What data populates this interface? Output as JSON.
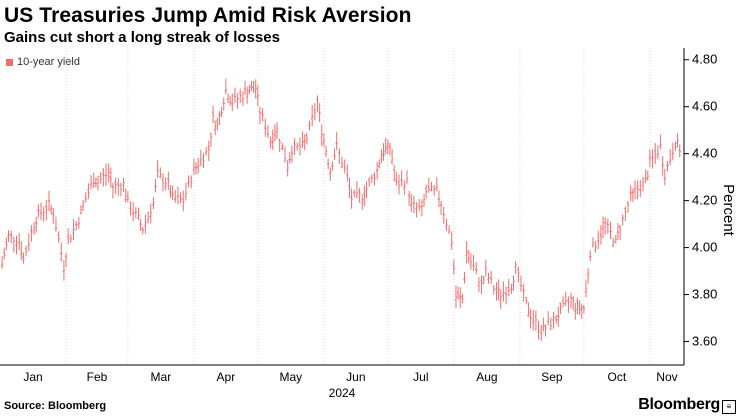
{
  "header": {
    "title": "US Treasuries Jump Amid Risk Aversion",
    "subtitle": "Gains cut short a long streak of losses"
  },
  "footer": {
    "source": "Source: Bloomberg",
    "brand": "Bloomberg"
  },
  "colors": {
    "series": "#f26d6d",
    "grid": "#d9d9d9",
    "axis": "#000000"
  },
  "chart_data": {
    "type": "line",
    "title": "US Treasuries Jump Amid Risk Aversion",
    "subtitle": "Gains cut short a long streak of losses",
    "ylabel": "Percent",
    "ylim": [
      3.5,
      4.85
    ],
    "yticks": [
      3.6,
      3.8,
      4.0,
      4.2,
      4.4,
      4.6,
      4.8
    ],
    "ytick_labels": [
      "3.60",
      "3.80",
      "4.00",
      "4.20",
      "4.40",
      "4.60",
      "4.80"
    ],
    "xticks": [
      "Jan",
      "Feb",
      "Mar",
      "Apr",
      "May",
      "Jun",
      "Jul",
      "Aug",
      "Sep",
      "Oct",
      "Nov"
    ],
    "xaxis_year": "2024",
    "grid": "vertical",
    "legend_position": "top-left",
    "series": [
      {
        "name": "10-year yield",
        "style": "ohlc-bars",
        "x": [
          "2024-01-02",
          "2024-01-05",
          "2024-01-10",
          "2024-01-12",
          "2024-01-17",
          "2024-01-19",
          "2024-01-24",
          "2024-01-26",
          "2024-01-31",
          "2024-02-02",
          "2024-02-07",
          "2024-02-09",
          "2024-02-14",
          "2024-02-16",
          "2024-02-21",
          "2024-02-23",
          "2024-02-28",
          "2024-03-01",
          "2024-03-06",
          "2024-03-08",
          "2024-03-13",
          "2024-03-15",
          "2024-03-20",
          "2024-03-22",
          "2024-03-27",
          "2024-04-01",
          "2024-04-03",
          "2024-04-08",
          "2024-04-10",
          "2024-04-12",
          "2024-04-16",
          "2024-04-19",
          "2024-04-24",
          "2024-04-26",
          "2024-04-30",
          "2024-05-02",
          "2024-05-07",
          "2024-05-10",
          "2024-05-15",
          "2024-05-17",
          "2024-05-22",
          "2024-05-24",
          "2024-05-29",
          "2024-05-31",
          "2024-06-04",
          "2024-06-07",
          "2024-06-12",
          "2024-06-14",
          "2024-06-19",
          "2024-06-21",
          "2024-06-26",
          "2024-06-28",
          "2024-07-02",
          "2024-07-05",
          "2024-07-10",
          "2024-07-12",
          "2024-07-17",
          "2024-07-19",
          "2024-07-24",
          "2024-07-26",
          "2024-07-31",
          "2024-08-02",
          "2024-08-05",
          "2024-08-07",
          "2024-08-09",
          "2024-08-14",
          "2024-08-16",
          "2024-08-21",
          "2024-08-23",
          "2024-08-28",
          "2024-08-30",
          "2024-09-04",
          "2024-09-06",
          "2024-09-11",
          "2024-09-13",
          "2024-09-18",
          "2024-09-20",
          "2024-09-25",
          "2024-09-27",
          "2024-10-01",
          "2024-10-04",
          "2024-10-09",
          "2024-10-11",
          "2024-10-16",
          "2024-10-18",
          "2024-10-23",
          "2024-10-25",
          "2024-10-30",
          "2024-11-01",
          "2024-11-06",
          "2024-11-08",
          "2024-11-13",
          "2024-11-15"
        ],
        "values": [
          3.93,
          4.05,
          4.03,
          3.95,
          4.1,
          4.14,
          4.18,
          4.15,
          3.92,
          4.03,
          4.12,
          4.18,
          4.29,
          4.28,
          4.32,
          4.26,
          4.27,
          4.19,
          4.12,
          4.08,
          4.19,
          4.31,
          4.27,
          4.21,
          4.2,
          4.33,
          4.36,
          4.42,
          4.55,
          4.52,
          4.67,
          4.62,
          4.65,
          4.67,
          4.68,
          4.58,
          4.46,
          4.5,
          4.35,
          4.42,
          4.43,
          4.47,
          4.62,
          4.5,
          4.33,
          4.43,
          4.3,
          4.21,
          4.22,
          4.25,
          4.33,
          4.4,
          4.43,
          4.27,
          4.28,
          4.18,
          4.16,
          4.24,
          4.24,
          4.19,
          4.03,
          3.79,
          3.78,
          3.98,
          3.94,
          3.84,
          3.89,
          3.81,
          3.8,
          3.84,
          3.91,
          3.76,
          3.71,
          3.65,
          3.66,
          3.7,
          3.73,
          3.78,
          3.75,
          3.74,
          3.98,
          4.06,
          4.1,
          4.02,
          4.09,
          4.21,
          4.24,
          4.28,
          4.36,
          4.43,
          4.31,
          4.45,
          4.42
        ]
      }
    ]
  }
}
